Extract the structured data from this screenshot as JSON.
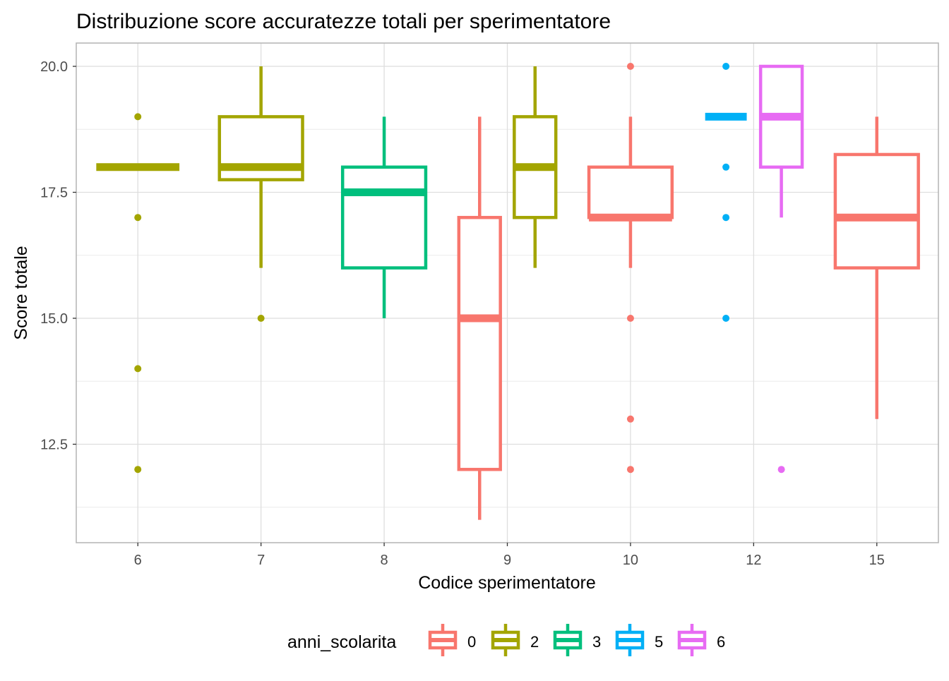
{
  "chart_data": {
    "type": "box",
    "title": "Distribuzione score accuratezze totali per sperimentatore",
    "xlabel": "Codice sperimentatore",
    "ylabel": "Score totale",
    "categories": [
      "6",
      "7",
      "8",
      "9",
      "10",
      "12",
      "15"
    ],
    "ylim": [
      10.8,
      20.5
    ],
    "yticks": [
      12.5,
      15.0,
      17.5,
      20.0
    ],
    "ytick_labels": [
      "12.5",
      "15.0",
      "17.5",
      "20.0"
    ],
    "grid": true,
    "legend_position": "bottom",
    "legend": {
      "title": "anni_scolarita",
      "entries": [
        {
          "label": "0",
          "color": "#F8766D"
        },
        {
          "label": "2",
          "color": "#A3A500"
        },
        {
          "label": "3",
          "color": "#00BF7D"
        },
        {
          "label": "5",
          "color": "#00B0F6"
        },
        {
          "label": "6",
          "color": "#E76BF3"
        }
      ]
    },
    "boxes": [
      {
        "category": "6",
        "group": "2",
        "slots": 1,
        "slot": 0,
        "min": 18,
        "q1": 18,
        "median": 18,
        "q3": 18,
        "max": 18,
        "outliers": [
          19,
          17,
          14,
          12
        ]
      },
      {
        "category": "7",
        "group": "2",
        "slots": 1,
        "slot": 0,
        "min": 16,
        "q1": 17.75,
        "median": 18,
        "q3": 19,
        "max": 20,
        "outliers": [
          15
        ]
      },
      {
        "category": "8",
        "group": "3",
        "slots": 1,
        "slot": 0,
        "min": 15,
        "q1": 16,
        "median": 17.5,
        "q3": 18,
        "max": 19,
        "outliers": []
      },
      {
        "category": "9",
        "group": "0",
        "slots": 2,
        "slot": 0,
        "min": 11,
        "q1": 12,
        "median": 15,
        "q3": 17,
        "max": 19,
        "outliers": []
      },
      {
        "category": "9",
        "group": "2",
        "slots": 2,
        "slot": 1,
        "min": 16,
        "q1": 17,
        "median": 18,
        "q3": 19,
        "max": 20,
        "outliers": []
      },
      {
        "category": "10",
        "group": "0",
        "slots": 1,
        "slot": 0,
        "min": 16,
        "q1": 17,
        "median": 17,
        "q3": 18,
        "max": 19,
        "outliers": [
          20,
          15,
          13,
          12
        ]
      },
      {
        "category": "12",
        "group": "5",
        "slots": 2,
        "slot": 0,
        "min": 19,
        "q1": 19,
        "median": 19,
        "q3": 19,
        "max": 19,
        "outliers": [
          20,
          18,
          17,
          15
        ]
      },
      {
        "category": "12",
        "group": "6",
        "slots": 2,
        "slot": 1,
        "min": 17,
        "q1": 18,
        "median": 19,
        "q3": 20,
        "max": 20,
        "outliers": [
          12
        ]
      },
      {
        "category": "15",
        "group": "0",
        "slots": 1,
        "slot": 0,
        "min": 13,
        "q1": 16,
        "median": 17,
        "q3": 18.25,
        "max": 19,
        "outliers": []
      }
    ]
  }
}
